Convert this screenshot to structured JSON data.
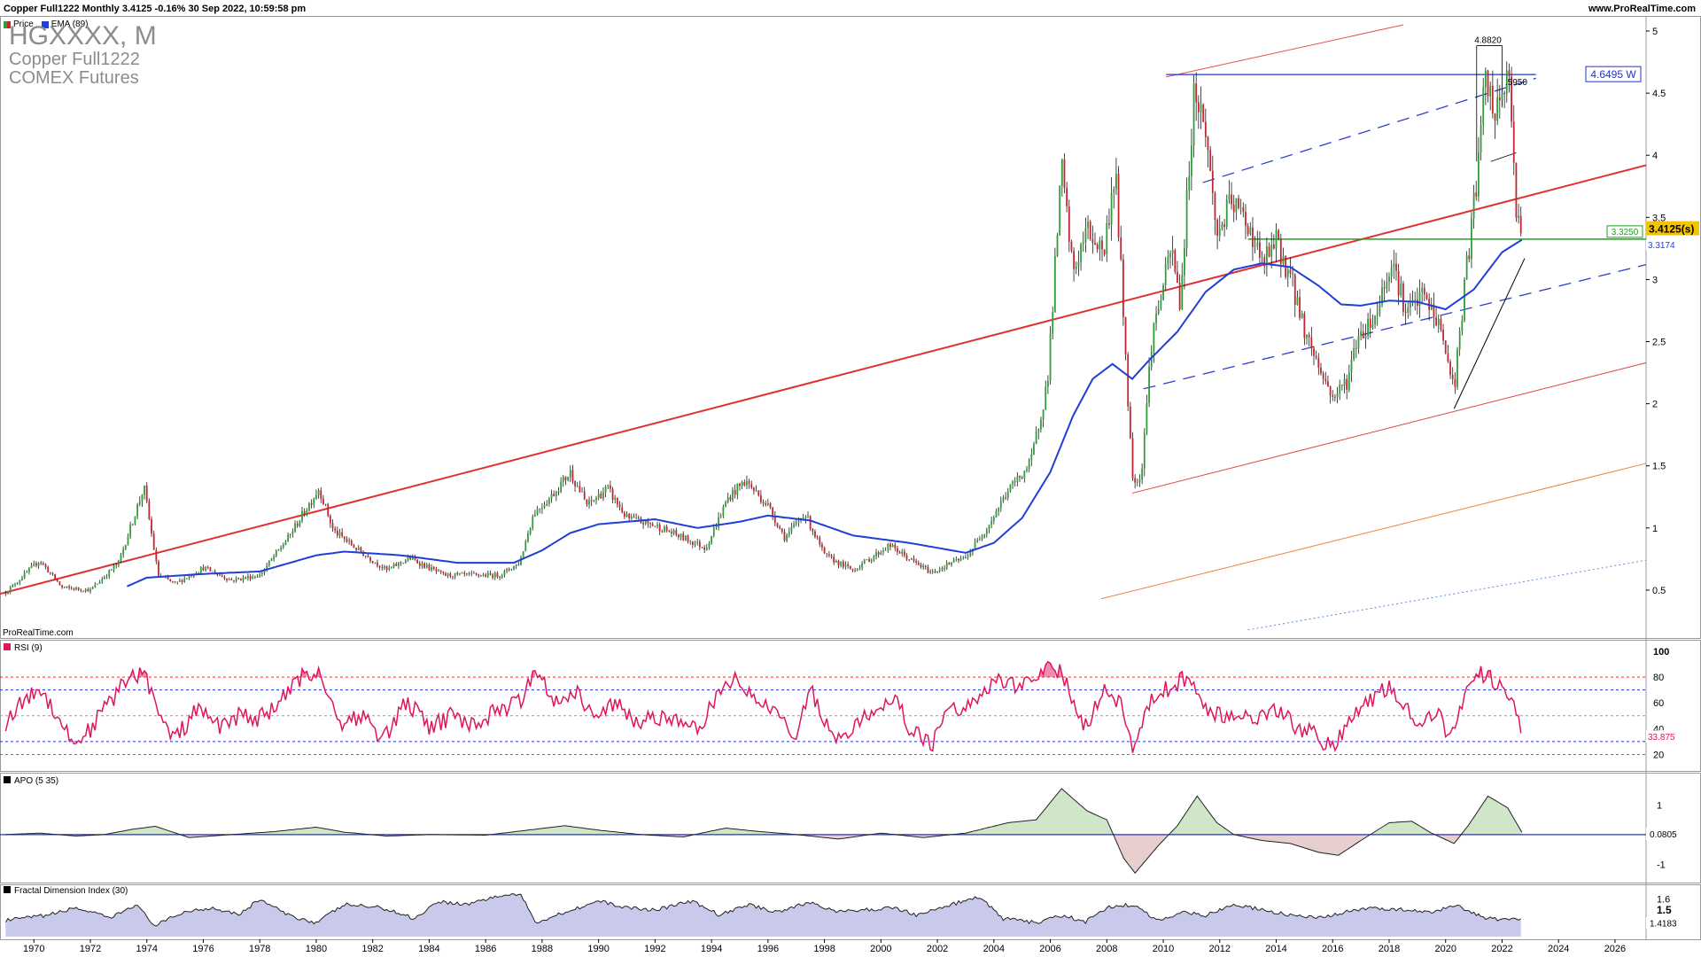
{
  "header": {
    "title": "Copper Full1222 Monthly 3.4125 -0.16% 30 Sep 2022, 10:59:58 pm",
    "site": "www.ProRealTime.com",
    "watermark": "ProRealTime.com",
    "legend_price": "Price",
    "legend_ema": "EMA (89)"
  },
  "instrument": {
    "ticker": "HGXXXX, M",
    "name": "Copper Full1222",
    "exchange": "COMEX Futures"
  },
  "colors": {
    "up": "#2e9e3a",
    "down": "#c3262e",
    "ema": "#1f3fd6",
    "trend_red": "#e03030",
    "rsi": "#e0155b",
    "blue_line": "#2233cc",
    "green_line": "#22a022"
  },
  "chart_data": [
    {
      "type": "candlestick",
      "title": "Copper Full1222 Monthly",
      "x_ticks": [
        "1970",
        "1972",
        "1974",
        "1976",
        "1978",
        "1980",
        "1982",
        "1984",
        "1986",
        "1988",
        "1990",
        "1992",
        "1994",
        "1996",
        "1998",
        "2000",
        "2002",
        "2004",
        "2006",
        "2008",
        "2010",
        "2012",
        "2014",
        "2016",
        "2018",
        "2020",
        "2022",
        "2024",
        "2026"
      ],
      "x_range": [
        1968.8,
        2027.1
      ],
      "y_ticks": [
        "0.5",
        "1",
        "1.5",
        "2",
        "2.5",
        "3",
        "3.5",
        "4",
        "4.5",
        "5"
      ],
      "y_range": [
        0.2,
        5.05
      ],
      "price_path": [
        [
          1969.0,
          0.48
        ],
        [
          1970.2,
          0.74
        ],
        [
          1971.0,
          0.52
        ],
        [
          1972.0,
          0.5
        ],
        [
          1973.0,
          0.72
        ],
        [
          1973.9,
          1.33
        ],
        [
          1974.4,
          0.62
        ],
        [
          1975.0,
          0.55
        ],
        [
          1976.0,
          0.68
        ],
        [
          1977.0,
          0.58
        ],
        [
          1978.0,
          0.62
        ],
        [
          1979.0,
          0.92
        ],
        [
          1980.1,
          1.32
        ],
        [
          1980.6,
          0.98
        ],
        [
          1981.5,
          0.82
        ],
        [
          1982.5,
          0.66
        ],
        [
          1983.3,
          0.76
        ],
        [
          1984.5,
          0.62
        ],
        [
          1985.5,
          0.62
        ],
        [
          1986.5,
          0.62
        ],
        [
          1987.2,
          0.72
        ],
        [
          1987.7,
          1.12
        ],
        [
          1988.3,
          1.25
        ],
        [
          1989.0,
          1.45
        ],
        [
          1989.6,
          1.18
        ],
        [
          1990.3,
          1.32
        ],
        [
          1991.0,
          1.08
        ],
        [
          1992.0,
          1.02
        ],
        [
          1993.0,
          0.92
        ],
        [
          1993.8,
          0.84
        ],
        [
          1994.6,
          1.25
        ],
        [
          1995.2,
          1.38
        ],
        [
          1996.0,
          1.18
        ],
        [
          1996.6,
          0.92
        ],
        [
          1997.3,
          1.12
        ],
        [
          1998.0,
          0.78
        ],
        [
          1999.0,
          0.66
        ],
        [
          2000.3,
          0.86
        ],
        [
          2001.2,
          0.72
        ],
        [
          2001.8,
          0.64
        ],
        [
          2002.5,
          0.72
        ],
        [
          2003.0,
          0.76
        ],
        [
          2003.8,
          1.02
        ],
        [
          2004.5,
          1.3
        ],
        [
          2005.3,
          1.52
        ],
        [
          2005.9,
          2.18
        ],
        [
          2006.4,
          3.9
        ],
        [
          2006.8,
          3.05
        ],
        [
          2007.3,
          3.4
        ],
        [
          2007.9,
          3.22
        ],
        [
          2008.3,
          3.9
        ],
        [
          2008.9,
          1.42
        ],
        [
          2009.2,
          1.38
        ],
        [
          2009.6,
          2.55
        ],
        [
          2010.3,
          3.25
        ],
        [
          2010.6,
          2.8
        ],
        [
          2011.1,
          4.55
        ],
        [
          2011.5,
          4.2
        ],
        [
          2011.9,
          3.35
        ],
        [
          2012.4,
          3.62
        ],
        [
          2013.0,
          3.45
        ],
        [
          2013.5,
          3.12
        ],
        [
          2014.0,
          3.3
        ],
        [
          2014.5,
          3.02
        ],
        [
          2015.0,
          2.6
        ],
        [
          2015.6,
          2.25
        ],
        [
          2016.0,
          2.05
        ],
        [
          2016.5,
          2.18
        ],
        [
          2016.9,
          2.55
        ],
        [
          2017.5,
          2.7
        ],
        [
          2018.1,
          3.18
        ],
        [
          2018.6,
          2.72
        ],
        [
          2019.2,
          2.88
        ],
        [
          2019.8,
          2.62
        ],
        [
          2020.3,
          2.12
        ],
        [
          2020.7,
          3.0
        ],
        [
          2021.1,
          3.8
        ],
        [
          2021.4,
          4.6
        ],
        [
          2021.8,
          4.3
        ],
        [
          2022.2,
          4.7
        ],
        [
          2022.5,
          3.6
        ],
        [
          2022.7,
          3.41
        ]
      ],
      "ema_path": [
        [
          1973.3,
          0.53
        ],
        [
          1974.0,
          0.6
        ],
        [
          1976.0,
          0.63
        ],
        [
          1978.0,
          0.65
        ],
        [
          1980.0,
          0.78
        ],
        [
          1981.0,
          0.81
        ],
        [
          1983.0,
          0.78
        ],
        [
          1985.0,
          0.72
        ],
        [
          1987.0,
          0.72
        ],
        [
          1988.0,
          0.82
        ],
        [
          1989.0,
          0.96
        ],
        [
          1990.0,
          1.03
        ],
        [
          1992.0,
          1.07
        ],
        [
          1993.5,
          1.0
        ],
        [
          1995.0,
          1.05
        ],
        [
          1996.0,
          1.1
        ],
        [
          1997.5,
          1.06
        ],
        [
          1999.0,
          0.94
        ],
        [
          2001.0,
          0.88
        ],
        [
          2003.0,
          0.8
        ],
        [
          2004.0,
          0.88
        ],
        [
          2005.0,
          1.08
        ],
        [
          2006.0,
          1.45
        ],
        [
          2006.8,
          1.9
        ],
        [
          2007.5,
          2.2
        ],
        [
          2008.2,
          2.32
        ],
        [
          2008.9,
          2.2
        ],
        [
          2009.5,
          2.35
        ],
        [
          2010.5,
          2.58
        ],
        [
          2011.5,
          2.9
        ],
        [
          2012.5,
          3.08
        ],
        [
          2013.5,
          3.13
        ],
        [
          2014.5,
          3.1
        ],
        [
          2015.5,
          2.95
        ],
        [
          2016.3,
          2.8
        ],
        [
          2017.0,
          2.79
        ],
        [
          2018.0,
          2.83
        ],
        [
          2019.0,
          2.82
        ],
        [
          2020.0,
          2.76
        ],
        [
          2021.0,
          2.92
        ],
        [
          2022.0,
          3.22
        ],
        [
          2022.7,
          3.32
        ]
      ],
      "labels": {
        "price": "3.4125(s)",
        "resistance": "4.6495 W",
        "support": "3.3250",
        "ema": "3.3174",
        "high": "4.8820",
        "fib": ".5950"
      },
      "levels": {
        "price": 3.4125,
        "resistance": 4.6495,
        "support": 3.325,
        "ema": 3.3174,
        "high": 4.882,
        "fib": 4.595
      },
      "legend": "top-left"
    },
    {
      "type": "line",
      "title": "RSI (9)",
      "y_ticks": [
        "20",
        "40",
        "60",
        "80",
        "100"
      ],
      "y_range": [
        10,
        100
      ],
      "levels": [
        20,
        30,
        50,
        70,
        80
      ],
      "last_label": "33.875",
      "last_value": 33.875,
      "points": [
        [
          1969.0,
          45
        ],
        [
          1969.6,
          60
        ],
        [
          1970.2,
          72
        ],
        [
          1970.8,
          52
        ],
        [
          1971.4,
          28
        ],
        [
          1972.0,
          40
        ],
        [
          1972.6,
          58
        ],
        [
          1973.2,
          75
        ],
        [
          1973.9,
          86
        ],
        [
          1974.5,
          45
        ],
        [
          1975.0,
          32
        ],
        [
          1975.8,
          55
        ],
        [
          1976.5,
          42
        ],
        [
          1977.3,
          50
        ],
        [
          1978.0,
          48
        ],
        [
          1978.8,
          62
        ],
        [
          1979.5,
          80
        ],
        [
          1980.1,
          85
        ],
        [
          1980.8,
          45
        ],
        [
          1981.6,
          50
        ],
        [
          1982.4,
          32
        ],
        [
          1983.2,
          62
        ],
        [
          1984.0,
          40
        ],
        [
          1984.8,
          50
        ],
        [
          1985.6,
          42
        ],
        [
          1986.4,
          55
        ],
        [
          1987.2,
          60
        ],
        [
          1987.8,
          88
        ],
        [
          1988.5,
          60
        ],
        [
          1989.2,
          70
        ],
        [
          1989.9,
          45
        ],
        [
          1990.6,
          62
        ],
        [
          1991.3,
          42
        ],
        [
          1992.0,
          50
        ],
        [
          1992.8,
          45
        ],
        [
          1993.5,
          38
        ],
        [
          1994.2,
          65
        ],
        [
          1994.8,
          80
        ],
        [
          1995.5,
          62
        ],
        [
          1996.2,
          58
        ],
        [
          1996.9,
          32
        ],
        [
          1997.5,
          72
        ],
        [
          1998.2,
          35
        ],
        [
          1999.0,
          38
        ],
        [
          1999.7,
          55
        ],
        [
          2000.4,
          65
        ],
        [
          2001.0,
          42
        ],
        [
          2001.8,
          25
        ],
        [
          2002.4,
          60
        ],
        [
          2003.0,
          55
        ],
        [
          2003.7,
          72
        ],
        [
          2004.2,
          80
        ],
        [
          2004.9,
          70
        ],
        [
          2005.5,
          82
        ],
        [
          2006.0,
          90
        ],
        [
          2006.5,
          80
        ],
        [
          2007.2,
          40
        ],
        [
          2007.9,
          70
        ],
        [
          2008.5,
          60
        ],
        [
          2008.9,
          22
        ],
        [
          2009.5,
          60
        ],
        [
          2010.2,
          72
        ],
        [
          2010.9,
          80
        ],
        [
          2011.5,
          55
        ],
        [
          2012.0,
          50
        ],
        [
          2012.7,
          52
        ],
        [
          2013.4,
          48
        ],
        [
          2014.1,
          55
        ],
        [
          2014.8,
          40
        ],
        [
          2015.4,
          35
        ],
        [
          2016.0,
          25
        ],
        [
          2016.6,
          45
        ],
        [
          2017.2,
          60
        ],
        [
          2017.9,
          72
        ],
        [
          2018.5,
          62
        ],
        [
          2019.0,
          45
        ],
        [
          2019.7,
          52
        ],
        [
          2020.2,
          30
        ],
        [
          2020.8,
          80
        ],
        [
          2021.4,
          82
        ],
        [
          2021.9,
          72
        ],
        [
          2022.3,
          65
        ],
        [
          2022.7,
          33.875
        ]
      ]
    },
    {
      "type": "area",
      "title": "APO (5 35)",
      "y_ticks": [
        "1",
        "-1"
      ],
      "y_range": [
        -1.5,
        1.7
      ],
      "last_label": "0.0805",
      "last_value": 0.0805,
      "points": [
        [
          1969.0,
          0.0
        ],
        [
          1970.2,
          0.05
        ],
        [
          1971.5,
          -0.05
        ],
        [
          1972.5,
          0.0
        ],
        [
          1973.5,
          0.18
        ],
        [
          1974.3,
          0.28
        ],
        [
          1975.5,
          -0.1
        ],
        [
          1977.0,
          0.0
        ],
        [
          1978.5,
          0.1
        ],
        [
          1980.0,
          0.25
        ],
        [
          1981.0,
          0.08
        ],
        [
          1982.5,
          -0.05
        ],
        [
          1984.0,
          0.0
        ],
        [
          1986.0,
          -0.02
        ],
        [
          1987.5,
          0.15
        ],
        [
          1988.8,
          0.3
        ],
        [
          1990.0,
          0.15
        ],
        [
          1991.5,
          0.0
        ],
        [
          1993.0,
          -0.08
        ],
        [
          1994.5,
          0.22
        ],
        [
          1995.5,
          0.12
        ],
        [
          1997.0,
          0.0
        ],
        [
          1998.5,
          -0.15
        ],
        [
          2000.0,
          0.05
        ],
        [
          2001.5,
          -0.1
        ],
        [
          2003.0,
          0.05
        ],
        [
          2004.5,
          0.4
        ],
        [
          2005.5,
          0.5
        ],
        [
          2006.4,
          1.55
        ],
        [
          2007.3,
          0.8
        ],
        [
          2008.0,
          0.5
        ],
        [
          2008.6,
          -0.8
        ],
        [
          2009.0,
          -1.3
        ],
        [
          2009.8,
          -0.4
        ],
        [
          2010.5,
          0.3
        ],
        [
          2011.2,
          1.3
        ],
        [
          2011.9,
          0.4
        ],
        [
          2012.5,
          0.0
        ],
        [
          2013.5,
          -0.2
        ],
        [
          2014.5,
          -0.3
        ],
        [
          2015.5,
          -0.6
        ],
        [
          2016.2,
          -0.7
        ],
        [
          2017.0,
          -0.2
        ],
        [
          2018.0,
          0.4
        ],
        [
          2018.8,
          0.45
        ],
        [
          2019.5,
          0.05
        ],
        [
          2020.3,
          -0.3
        ],
        [
          2020.8,
          0.3
        ],
        [
          2021.5,
          1.3
        ],
        [
          2022.2,
          0.9
        ],
        [
          2022.7,
          0.0805
        ]
      ]
    },
    {
      "type": "area",
      "title": "Fractal Dimension Index (30)",
      "y_ticks": [
        "1.6",
        "1.5"
      ],
      "y_range": [
        1.25,
        1.68
      ],
      "last_label": "1.4183",
      "last_value": 1.4183,
      "points": [
        [
          1969.0,
          1.4
        ],
        [
          1970.5,
          1.45
        ],
        [
          1971.5,
          1.52
        ],
        [
          1972.7,
          1.42
        ],
        [
          1973.6,
          1.55
        ],
        [
          1974.3,
          1.35
        ],
        [
          1975.3,
          1.48
        ],
        [
          1976.3,
          1.52
        ],
        [
          1977.3,
          1.46
        ],
        [
          1978.0,
          1.6
        ],
        [
          1979.0,
          1.45
        ],
        [
          1980.0,
          1.38
        ],
        [
          1981.0,
          1.55
        ],
        [
          1982.3,
          1.52
        ],
        [
          1983.5,
          1.42
        ],
        [
          1984.3,
          1.58
        ],
        [
          1985.3,
          1.55
        ],
        [
          1986.3,
          1.62
        ],
        [
          1987.2,
          1.65
        ],
        [
          1987.8,
          1.38
        ],
        [
          1988.8,
          1.48
        ],
        [
          1990.0,
          1.58
        ],
        [
          1991.0,
          1.52
        ],
        [
          1992.0,
          1.5
        ],
        [
          1993.3,
          1.58
        ],
        [
          1994.3,
          1.45
        ],
        [
          1995.3,
          1.55
        ],
        [
          1996.3,
          1.48
        ],
        [
          1997.5,
          1.57
        ],
        [
          1998.5,
          1.48
        ],
        [
          1999.5,
          1.5
        ],
        [
          2000.5,
          1.52
        ],
        [
          2001.3,
          1.45
        ],
        [
          2002.5,
          1.55
        ],
        [
          2003.5,
          1.62
        ],
        [
          2004.3,
          1.42
        ],
        [
          2005.5,
          1.38
        ],
        [
          2006.5,
          1.45
        ],
        [
          2007.2,
          1.38
        ],
        [
          2008.0,
          1.52
        ],
        [
          2008.9,
          1.55
        ],
        [
          2009.8,
          1.4
        ],
        [
          2010.7,
          1.48
        ],
        [
          2011.5,
          1.45
        ],
        [
          2012.5,
          1.55
        ],
        [
          2013.5,
          1.5
        ],
        [
          2014.5,
          1.45
        ],
        [
          2015.5,
          1.42
        ],
        [
          2016.5,
          1.48
        ],
        [
          2017.5,
          1.52
        ],
        [
          2018.5,
          1.5
        ],
        [
          2019.5,
          1.47
        ],
        [
          2020.3,
          1.55
        ],
        [
          2021.3,
          1.43
        ],
        [
          2022.0,
          1.4
        ],
        [
          2022.7,
          1.4183
        ]
      ]
    }
  ]
}
